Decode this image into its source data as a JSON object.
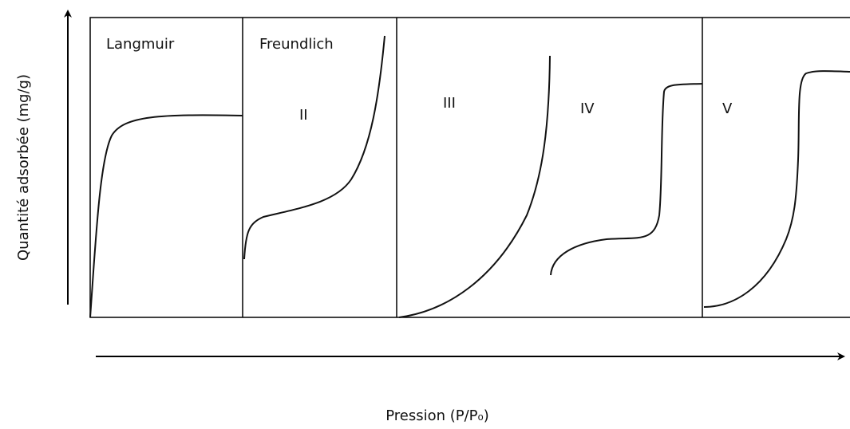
{
  "panels": [
    {
      "label": "Langmuir"
    },
    {
      "label": "Freundlich",
      "type": "II"
    },
    {
      "type": "III"
    },
    {
      "type": "IV"
    },
    {
      "type": "V"
    }
  ],
  "y_axis": {
    "label": "Quantité adsorbée (mg/g)"
  },
  "x_axis": {
    "label": "Pression (P/P₀)"
  }
}
